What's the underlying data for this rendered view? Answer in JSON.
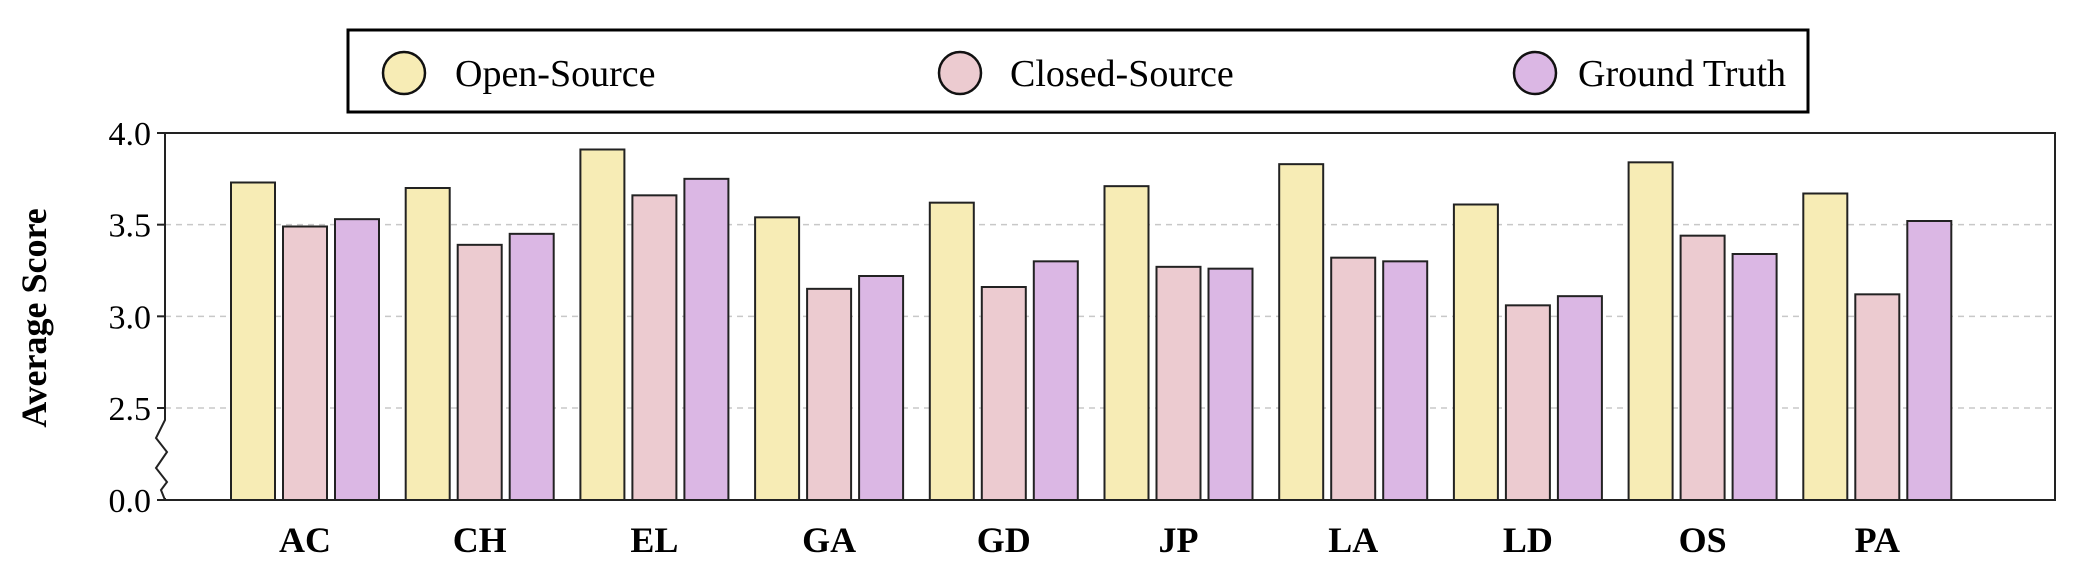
{
  "chart_data": {
    "type": "bar",
    "title": "",
    "xlabel": "",
    "ylabel": "Average Score",
    "categories": [
      "AC",
      "CH",
      "EL",
      "GA",
      "GD",
      "JP",
      "LA",
      "LD",
      "OS",
      "PA"
    ],
    "series": [
      {
        "name": "Open-Source",
        "color": "#f7ecb5",
        "values": [
          3.73,
          3.7,
          3.91,
          3.54,
          3.62,
          3.71,
          3.83,
          3.61,
          3.84,
          3.67
        ]
      },
      {
        "name": "Closed-Source",
        "color": "#eccbd0",
        "values": [
          3.49,
          3.39,
          3.66,
          3.15,
          3.16,
          3.27,
          3.32,
          3.06,
          3.44,
          3.12
        ]
      },
      {
        "name": "Ground Truth",
        "color": "#dbb7e4",
        "values": [
          3.53,
          3.45,
          3.75,
          3.22,
          3.3,
          3.26,
          3.3,
          3.11,
          3.34,
          3.52
        ]
      }
    ],
    "y_ticks": [
      "0.0",
      "2.5",
      "3.0",
      "3.5",
      "4.0"
    ],
    "y_axis_break": [
      0.0,
      2.0
    ],
    "ylim": [
      2.0,
      4.0
    ],
    "grid": "horizontal dashed at 2.5, 3.0, 3.5",
    "legend_position": "top-center",
    "edge_color": "#222222"
  }
}
